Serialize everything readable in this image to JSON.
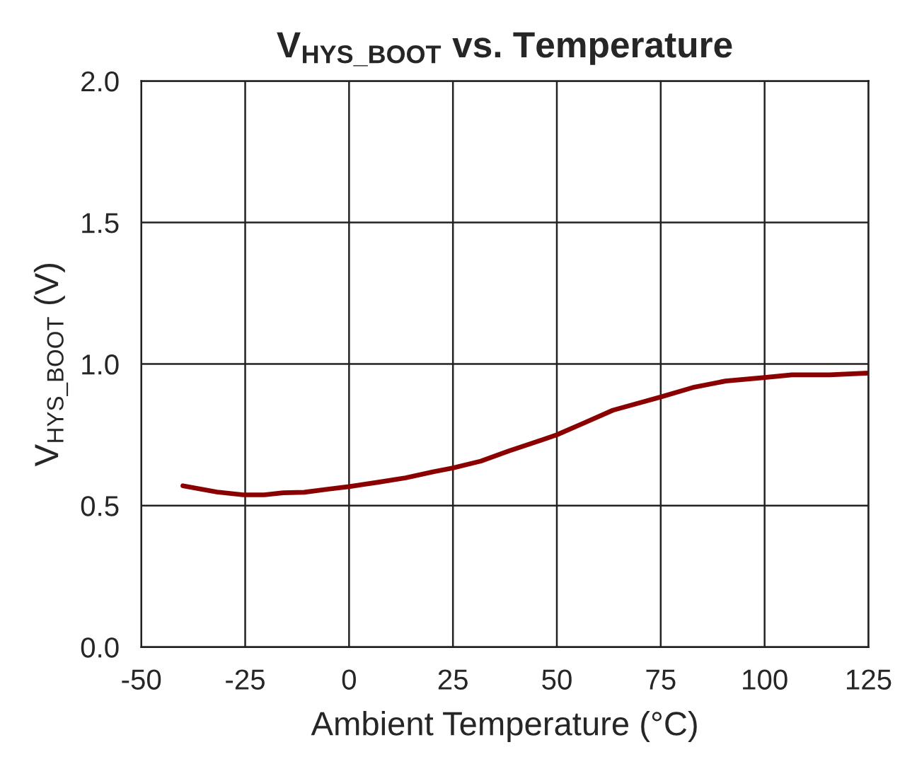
{
  "chart_data": {
    "type": "line",
    "title": "V$_{HYS_BOOT}$ vs. Temperature",
    "xlabel": "Ambient Temperature (°C)",
    "ylabel": "V$_{HYS_BOOT}$ (V)",
    "series": [
      {
        "color": "#8b0000",
        "x": [
          -40,
          -31.8,
          -25.5,
          -20.4,
          -15.9,
          -10.8,
          -5.1,
          0,
          6.8,
          13.6,
          20.4,
          25,
          31.7,
          38.5,
          44,
          50,
          56.7,
          63.5,
          74.8,
          82.7,
          90.6,
          99.6,
          106.6,
          115.6,
          125
        ],
        "values": [
          0.57,
          0.548,
          0.538,
          0.538,
          0.545,
          0.547,
          0.558,
          0.567,
          0.582,
          0.598,
          0.62,
          0.633,
          0.657,
          0.693,
          0.72,
          0.75,
          0.793,
          0.837,
          0.883,
          0.917,
          0.94,
          0.952,
          0.962,
          0.962,
          0.968
        ]
      }
    ],
    "xlim": [
      -50,
      125
    ],
    "xticks": [
      -50,
      -25,
      0,
      25,
      50,
      75,
      100,
      125
    ],
    "ylim": [
      0,
      2
    ],
    "yticks": [
      {
        "value": 0,
        "label": "0.0"
      },
      {
        "value": 0.5,
        "label": "0.5"
      },
      {
        "value": 1,
        "label": "1.0"
      },
      {
        "value": 1.5,
        "label": "1.5"
      },
      {
        "value": 2,
        "label": "2.0"
      }
    ],
    "grid": true,
    "marker": "none",
    "line_style": "solid"
  }
}
